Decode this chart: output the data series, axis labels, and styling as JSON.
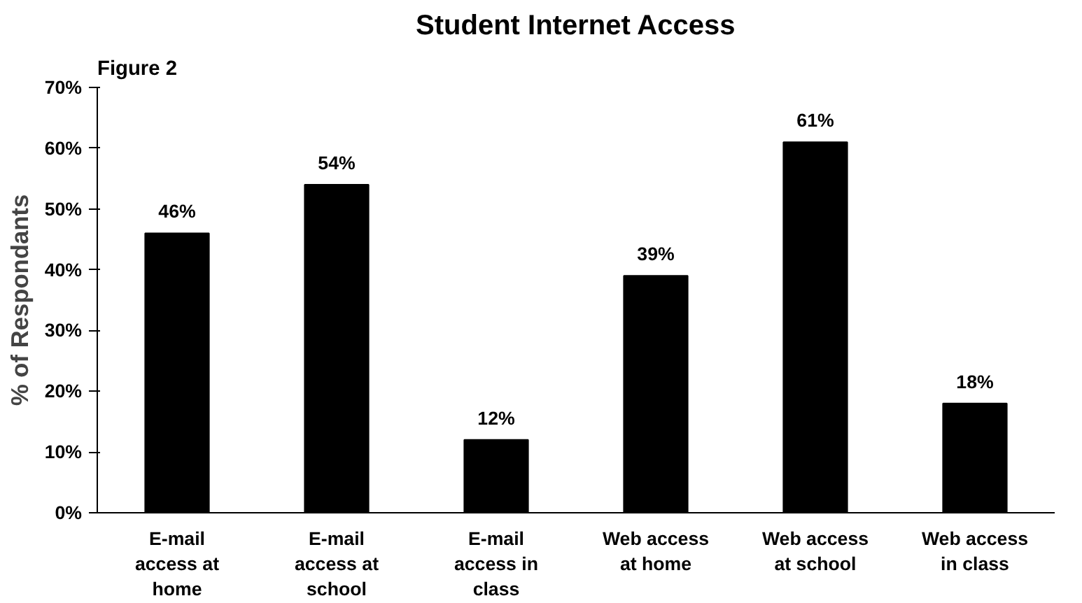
{
  "chart_data": {
    "type": "bar",
    "title": "Student Internet Access",
    "annotations": [
      "Figure 2"
    ],
    "ylabel": "% of Respondants",
    "categories": [
      "E-mail access at home",
      "E-mail access at school",
      "E-mail access in class",
      "Web access at home",
      "Web access at school",
      "Web access in class"
    ],
    "values": [
      46,
      54,
      12,
      39,
      61,
      18
    ],
    "value_labels": [
      "46%",
      "54%",
      "12%",
      "39%",
      "61%",
      "18%"
    ],
    "color": "#000000",
    "ylim": [
      0,
      70
    ],
    "yticks": [
      {
        "value": 0,
        "label": "0%"
      },
      {
        "value": 10,
        "label": "10%"
      },
      {
        "value": 20,
        "label": "20%"
      },
      {
        "value": 30,
        "label": "30%"
      },
      {
        "value": 40,
        "label": "40%"
      },
      {
        "value": 50,
        "label": "50%"
      },
      {
        "value": 60,
        "label": "60%"
      },
      {
        "value": 70,
        "label": "70%"
      }
    ],
    "grid": false
  }
}
